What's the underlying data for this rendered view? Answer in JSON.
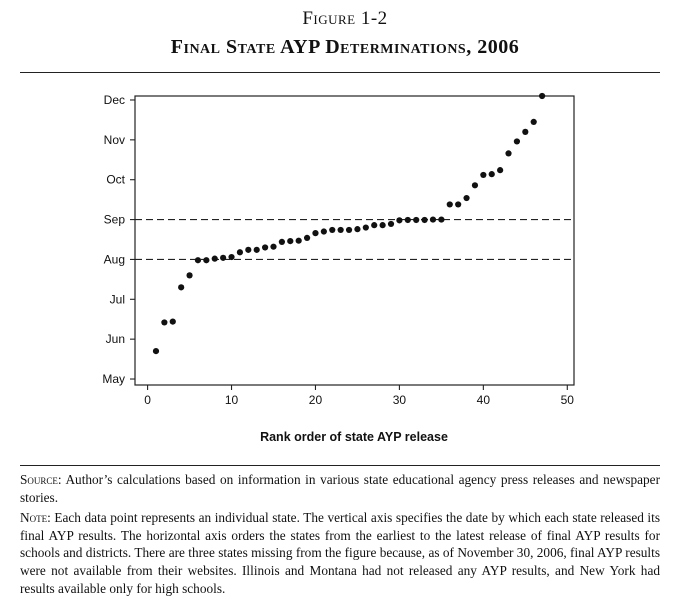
{
  "figure": {
    "label": "Figure 1-2",
    "title": "Final State AYP Determinations, 2006"
  },
  "notes": {
    "source_label": "Source:",
    "source_text": "Author’s calculations based on information in various state educational agency press releases and newspaper stories.",
    "note_label": "Note:",
    "note_text": "Each data point represents an individual state. The vertical axis specifies the date by which each state released its final AYP results. The horizontal axis orders the states from the earliest to the latest release of final AYP results for schools and districts. There are three states missing from the figure because, as of November 30, 2006, final AYP results were not available from their websites. Illinois and Montana had not released any AYP results, and New York had results available only for high schools."
  },
  "chart_data": {
    "type": "scatter",
    "title": "",
    "xlabel": "Rank order of state AYP release",
    "ylabel": "",
    "xlim": [
      -1.5,
      50.8
    ],
    "ylim": [
      4.85,
      12.1
    ],
    "xticks": [
      0,
      10,
      20,
      30,
      40,
      50
    ],
    "yticks": [
      {
        "value": 5,
        "label": "May"
      },
      {
        "value": 6,
        "label": "Jun"
      },
      {
        "value": 7,
        "label": "Jul"
      },
      {
        "value": 8,
        "label": "Aug"
      },
      {
        "value": 9,
        "label": "Sep"
      },
      {
        "value": 10,
        "label": "Oct"
      },
      {
        "value": 11,
        "label": "Nov"
      },
      {
        "value": 12,
        "label": "Dec"
      }
    ],
    "reference_lines": [
      8,
      9
    ],
    "grid": false,
    "x": [
      1,
      2,
      3,
      4,
      5,
      6,
      7,
      8,
      9,
      10,
      11,
      12,
      13,
      14,
      15,
      16,
      17,
      18,
      19,
      20,
      21,
      22,
      23,
      24,
      25,
      26,
      27,
      28,
      29,
      30,
      31,
      32,
      33,
      34,
      35,
      36,
      37,
      38,
      39,
      40,
      41,
      42,
      43,
      44,
      45,
      46,
      47
    ],
    "y": [
      5.7,
      6.42,
      6.44,
      7.3,
      7.6,
      7.98,
      7.98,
      8.02,
      8.04,
      8.06,
      8.18,
      8.24,
      8.24,
      8.3,
      8.32,
      8.44,
      8.46,
      8.47,
      8.54,
      8.66,
      8.7,
      8.74,
      8.74,
      8.74,
      8.76,
      8.8,
      8.86,
      8.86,
      8.89,
      8.98,
      8.99,
      8.99,
      8.99,
      9.0,
      9.0,
      9.38,
      9.38,
      9.54,
      9.86,
      10.12,
      10.14,
      10.24,
      10.66,
      10.96,
      11.2,
      11.45,
      12.1
    ]
  }
}
